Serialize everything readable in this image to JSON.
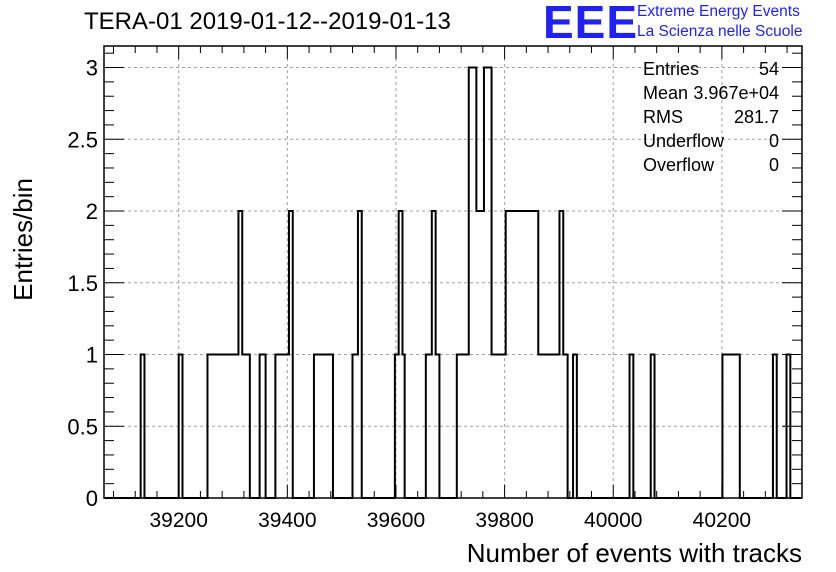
{
  "chart_data": {
    "type": "histogram",
    "title": "TERA-01 2019-01-12--2019-01-13",
    "xlabel": "Number of events with tracks",
    "ylabel": "Entries/bin",
    "xlim": [
      39062.5,
      40347.5
    ],
    "ylim": [
      0,
      3.15
    ],
    "bin_width": 7.14,
    "grid": true,
    "xticks": [
      39200,
      39400,
      39600,
      39800,
      40000,
      40200
    ],
    "xtick_labels": [
      "39200",
      "39400",
      "39600",
      "39800",
      "40000",
      "40200"
    ],
    "yticks": [
      0,
      0.5,
      1,
      1.5,
      2,
      2.5,
      3
    ],
    "ytick_labels": [
      "0",
      "0.5",
      "1",
      "1.5",
      "2",
      "2.5",
      "3"
    ],
    "bins": [
      {
        "x0": 39130,
        "x1": 39137,
        "count": 1
      },
      {
        "x0": 39200,
        "x1": 39207,
        "count": 1
      },
      {
        "x0": 39253,
        "x1": 39310,
        "count": 1
      },
      {
        "x0": 39310,
        "x1": 39317,
        "count": 2
      },
      {
        "x0": 39317,
        "x1": 39331,
        "count": 1
      },
      {
        "x0": 39349,
        "x1": 39360,
        "count": 1
      },
      {
        "x0": 39378,
        "x1": 39403,
        "count": 1
      },
      {
        "x0": 39403,
        "x1": 39410,
        "count": 2
      },
      {
        "x0": 39449,
        "x1": 39484,
        "count": 1
      },
      {
        "x0": 39520,
        "x1": 39530,
        "count": 1
      },
      {
        "x0": 39530,
        "x1": 39537,
        "count": 2
      },
      {
        "x0": 39598,
        "x1": 39605,
        "count": 1
      },
      {
        "x0": 39605,
        "x1": 39612,
        "count": 2
      },
      {
        "x0": 39612,
        "x1": 39616,
        "count": 1
      },
      {
        "x0": 39655,
        "x1": 39666,
        "count": 1
      },
      {
        "x0": 39666,
        "x1": 39673,
        "count": 2
      },
      {
        "x0": 39673,
        "x1": 39680,
        "count": 1
      },
      {
        "x0": 39712,
        "x1": 39734,
        "count": 1
      },
      {
        "x0": 39734,
        "x1": 39748,
        "count": 3
      },
      {
        "x0": 39748,
        "x1": 39762,
        "count": 2
      },
      {
        "x0": 39762,
        "x1": 39776,
        "count": 3
      },
      {
        "x0": 39776,
        "x1": 39802,
        "count": 1
      },
      {
        "x0": 39802,
        "x1": 39862,
        "count": 2
      },
      {
        "x0": 39862,
        "x1": 39891,
        "count": 1
      },
      {
        "x0": 39891,
        "x1": 39901,
        "count": 1
      },
      {
        "x0": 39901,
        "x1": 39908,
        "count": 2
      },
      {
        "x0": 39908,
        "x1": 39916,
        "count": 1
      },
      {
        "x0": 39926,
        "x1": 39933,
        "count": 1
      },
      {
        "x0": 40030,
        "x1": 40037,
        "count": 1
      },
      {
        "x0": 40069,
        "x1": 40076,
        "count": 1
      },
      {
        "x0": 40201,
        "x1": 40233,
        "count": 1
      },
      {
        "x0": 40294,
        "x1": 40301,
        "count": 1
      },
      {
        "x0": 40319,
        "x1": 40326,
        "count": 1
      }
    ]
  },
  "stats": {
    "entries_label": "Entries",
    "entries_value": "54",
    "mean_label": "Mean",
    "mean_value": "3.967e+04",
    "rms_label": "RMS",
    "rms_value": "281.7",
    "underflow_label": "Underflow",
    "underflow_value": "0",
    "overflow_label": "Overflow",
    "overflow_value": "0"
  },
  "logo": {
    "mark": "EEE",
    "line1": "Extreme Energy Events",
    "line2": "La Scienza nelle Scuole",
    "color": "#2222ee"
  },
  "colors": {
    "grid": "#a0a0a0",
    "line": "#000000",
    "background": "#ffffff"
  }
}
